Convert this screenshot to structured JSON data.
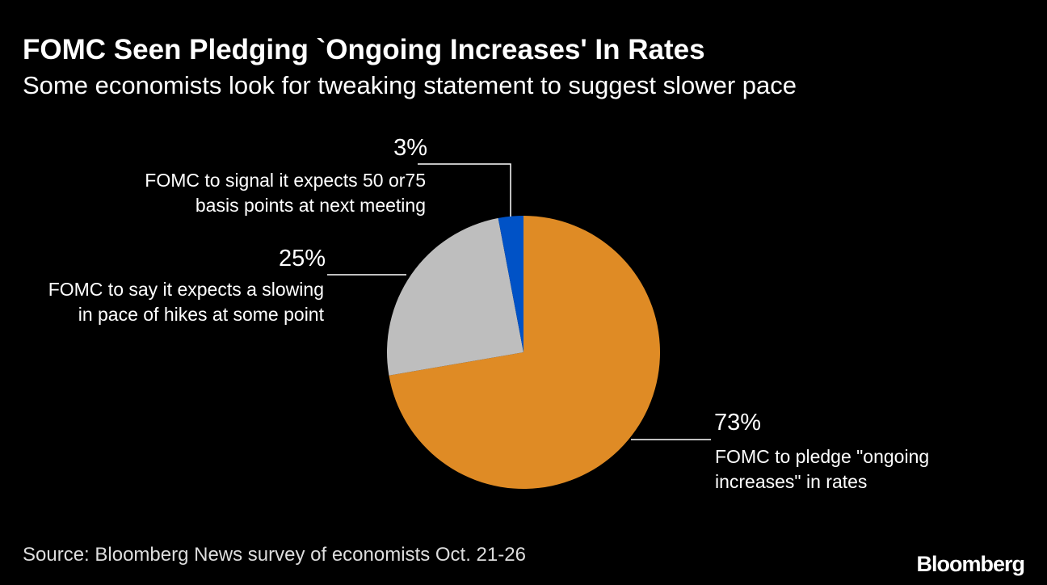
{
  "chart_data": {
    "type": "pie",
    "title": "FOMC Seen Pledging `Ongoing Increases' In Rates",
    "subtitle": "Some economists look for tweaking statement to suggest slower pace",
    "categories": [
      "FOMC to pledge \"ongoing\nincreases\" in rates",
      "FOMC to say it expects a slowing\nin pace of hikes at some point",
      "FOMC to signal it expects 50 or75\nbasis points at next meeting"
    ],
    "values": [
      73,
      25,
      3
    ],
    "value_labels": [
      "73%",
      "25%",
      "3%"
    ],
    "colors": [
      "#df8b25",
      "#bebebe",
      "#0052c6"
    ],
    "source": "Source: Bloomberg News survey of economists Oct. 21-26",
    "logo": "Bloomberg"
  }
}
